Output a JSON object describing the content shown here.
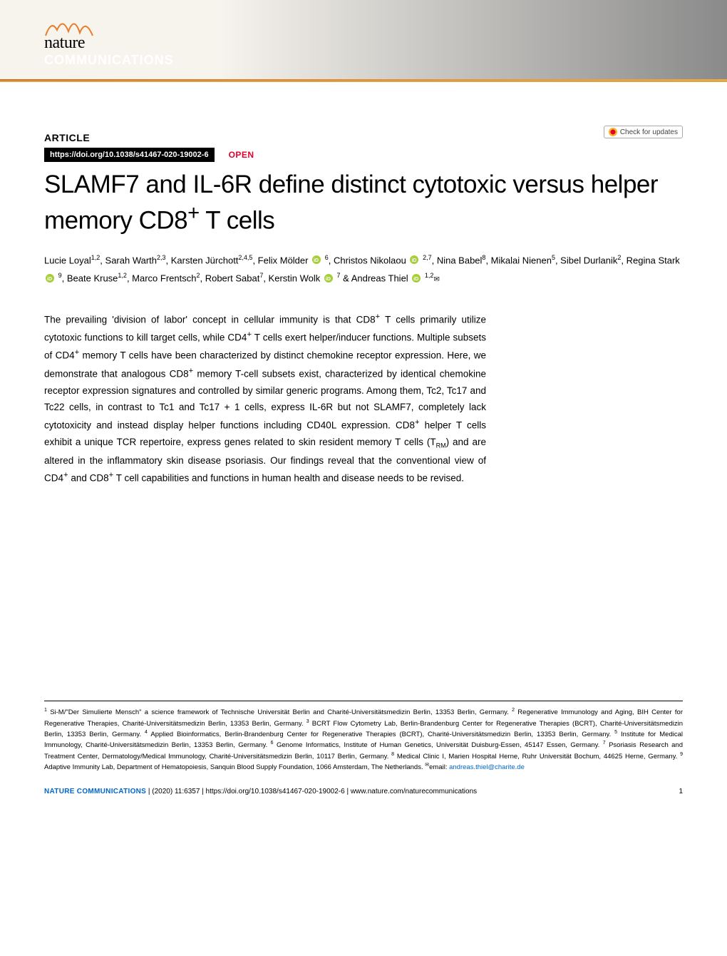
{
  "journal": {
    "name_line1": "nature",
    "name_line2": "COMMUNICATIONS"
  },
  "check_updates": "Check for updates",
  "article_type": "ARTICLE",
  "doi": "https://doi.org/10.1038/s41467-020-19002-6",
  "open": "OPEN",
  "title": "SLAMF7 and IL-6R define distinct cytotoxic versus helper memory CD8+ T cells",
  "authors_html": "Lucie Loyal<sup>1,2</sup>, Sarah Warth<sup>2,3</sup>, Karsten Jürchott<sup>2,4,5</sup>, Felix Mölder <span class='orcid' data-name='orcid-icon'></span> <sup>6</sup>, Christos Nikolaou <span class='orcid' data-name='orcid-icon'></span> <sup>2,7</sup>, Nina Babel<sup>8</sup>, Mikalai Nienen<sup>5</sup>, Sibel Durlanik<sup>2</sup>, Regina Stark <span class='orcid' data-name='orcid-icon'></span> <sup>9</sup>, Beate Kruse<sup>1,2</sup>, Marco Frentsch<sup>2</sup>, Robert Sabat<sup>7</sup>, Kerstin Wolk <span class='orcid' data-name='orcid-icon'></span> <sup>7</sup> & Andreas Thiel <span class='orcid' data-name='orcid-icon'></span> <sup>1,2</sup><span class='envelope' data-name='mail-icon'>✉</span>",
  "abstract": "The prevailing 'division of labor' concept in cellular immunity is that CD8+ T cells primarily utilize cytotoxic functions to kill target cells, while CD4+ T cells exert helper/inducer functions. Multiple subsets of CD4+ memory T cells have been characterized by distinct chemokine receptor expression. Here, we demonstrate that analogous CD8+ memory T-cell subsets exist, characterized by identical chemokine receptor expression signatures and controlled by similar generic programs. Among them, Tc2, Tc17 and Tc22 cells, in contrast to Tc1 and Tc17 + 1 cells, express IL-6R but not SLAMF7, completely lack cytotoxicity and instead display helper functions including CD40L expression. CD8+ helper T cells exhibit a unique TCR repertoire, express genes related to skin resident memory T cells (TRM) and are altered in the inflammatory skin disease psoriasis. Our findings reveal that the conventional view of CD4+ and CD8+ T cell capabilities and functions in human health and disease needs to be revised.",
  "affiliations_html": "<sup>1</sup> Si-M/\"Der Simulierte Mensch\" a science framework of Technische Universität Berlin and Charité-Universitätsmedizin Berlin, 13353 Berlin, Germany. <sup>2</sup> Regenerative Immunology and Aging, BIH Center for Regenerative Therapies, Charité-Universitätsmedizin Berlin, 13353 Berlin, Germany. <sup>3</sup> BCRT Flow Cytometry Lab, Berlin-Brandenburg Center for Regenerative Therapies (BCRT), Charité-Universitätsmedizin Berlin, 13353 Berlin, Germany. <sup>4</sup> Applied Bioinformatics, Berlin-Brandenburg Center for Regenerative Therapies (BCRT), Charité-Universitätsmedizin Berlin, 13353 Berlin, Germany. <sup>5</sup> Institute for Medical Immunology, Charité-Universitätsmedizin Berlin, 13353 Berlin, Germany. <sup>6</sup> Genome Informatics, Institute of Human Genetics, Universität Duisburg-Essen, 45147 Essen, Germany. <sup>7</sup> Psoriasis Research and Treatment Center, Dermatology/Medical Immunology, Charité-Universitätsmedizin Berlin, 10117 Berlin, Germany. <sup>8</sup> Medical Clinic I, Marien Hospital Herne, Ruhr Universität Bochum, 44625 Herne, Germany. <sup>9</sup> Adaptive Immunity Lab, Department of Hematopoiesis, Sanquin Blood Supply Foundation, 1066 Amsterdam, The Netherlands. <sup>✉</sup>email: <a href='#' data-name='email-link' data-interactable='true'>andreas.thiel@charite.de</a>",
  "footer": {
    "journal_ref": "NATURE COMMUNICATIONS",
    "citation": " |          (2020) 11:6357  | https://doi.org/10.1038/s41467-020-19002-6 | www.nature.com/naturecommunications",
    "page": "1"
  },
  "colors": {
    "accent": "#e4002b",
    "link": "#0066cc",
    "orcid": "#a6ce39",
    "banner_gold": "#d4a843",
    "wave": "#e87c2a"
  }
}
